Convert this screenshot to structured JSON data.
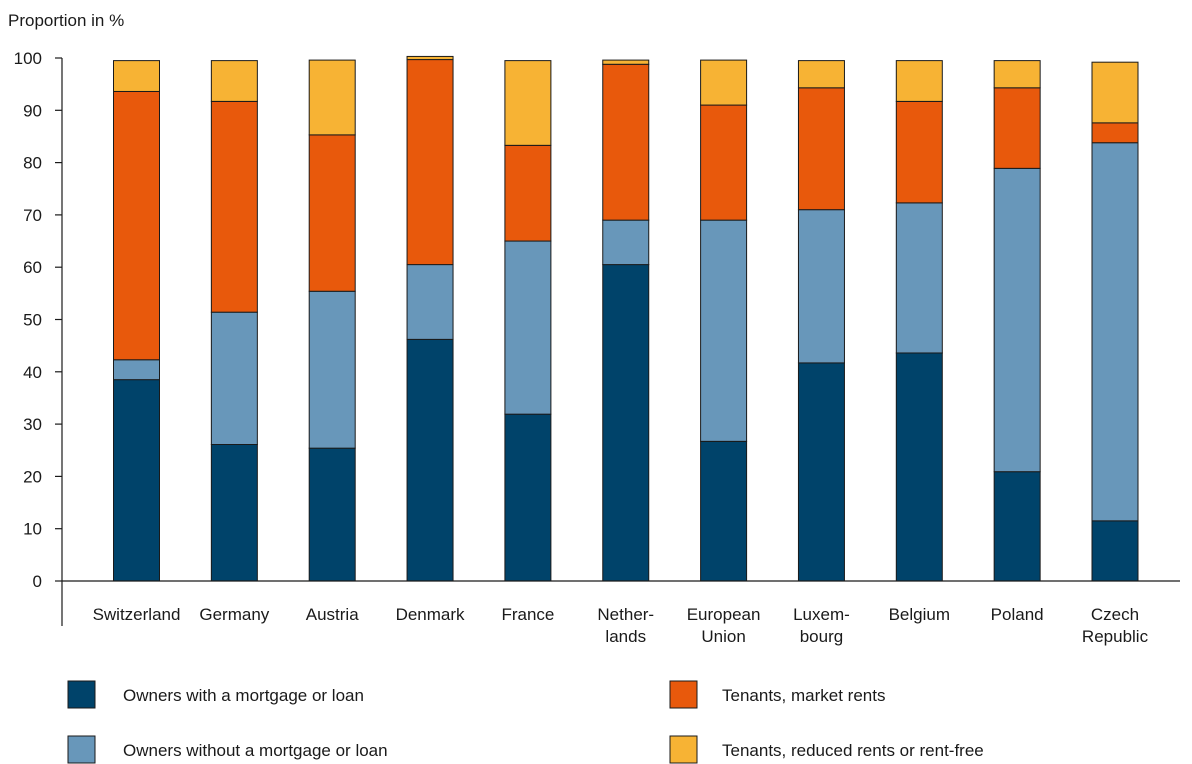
{
  "chart_data": {
    "type": "bar",
    "stacked": true,
    "title": "",
    "ylabel": "Proportion in %",
    "xlabel": "",
    "ylim": [
      0,
      100
    ],
    "yticks": [
      "0",
      "10",
      "20",
      "30",
      "40",
      "50",
      "60",
      "70",
      "80",
      "90",
      "100"
    ],
    "grid": false,
    "legend_position": "bottom",
    "categories": [
      [
        "Switzerland"
      ],
      [
        "Germany"
      ],
      [
        "Austria"
      ],
      [
        "Denmark"
      ],
      [
        "France"
      ],
      [
        "Nether-",
        "lands"
      ],
      [
        "European",
        "Union"
      ],
      [
        "Luxem-",
        "bourg"
      ],
      [
        "Belgium"
      ],
      [
        "Poland"
      ],
      [
        "Czech",
        "Republic"
      ]
    ],
    "series": [
      {
        "name": "Owners with a mortgage or loan",
        "color": "#00436a",
        "values": [
          38.5,
          26.1,
          25.4,
          46.2,
          31.9,
          60.5,
          26.7,
          41.7,
          43.6,
          20.9,
          11.5
        ]
      },
      {
        "name": "Owners without a mortgage or loan",
        "color": "#6897ba",
        "values": [
          3.8,
          25.3,
          30.0,
          14.3,
          33.1,
          8.5,
          42.3,
          29.3,
          28.7,
          58.0,
          72.3
        ]
      },
      {
        "name": "Tenants, market rents",
        "color": "#e8590c",
        "values": [
          51.3,
          40.3,
          29.9,
          39.2,
          18.3,
          29.8,
          22.0,
          23.3,
          19.4,
          15.4,
          3.8
        ]
      },
      {
        "name": "Tenants, reduced rents or rent-free",
        "color": "#f7b334",
        "values": [
          5.9,
          7.8,
          14.3,
          0.6,
          16.2,
          0.8,
          8.6,
          5.2,
          7.8,
          5.2,
          11.6
        ]
      }
    ]
  }
}
